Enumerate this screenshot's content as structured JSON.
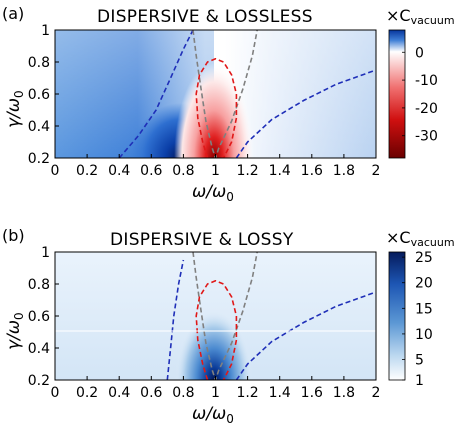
{
  "chart_data": [
    {
      "panel_label": "(a)",
      "type": "heatmap",
      "title": "DISPERSIVE & LOSSLESS",
      "xlabel": "ω/ω",
      "xlabel_sub": "0",
      "ylabel": "γ/ω",
      "ylabel_sub": "0",
      "xlim": [
        0,
        2
      ],
      "ylim": [
        0.2,
        1
      ],
      "xticks": [
        "0",
        "0.2",
        "0.4",
        "0.6",
        "0.8",
        "1",
        "1.2",
        "1.4",
        "1.6",
        "1.8",
        "2"
      ],
      "yticks": [
        "0.2",
        "0.4",
        "0.6",
        "0.8",
        "1"
      ],
      "colorbar": {
        "label": "×C",
        "label_sub": "vacuum",
        "range": [
          -38,
          8
        ],
        "ticks": [
          "0",
          "-10",
          "-20",
          "-30"
        ],
        "colormap": "blue-white-red (diverging)",
        "colors": {
          "high": "#06359c",
          "mid": "#ffffff",
          "low": "#7a0000"
        }
      },
      "contours": [
        {
          "color": "#1f2fb8",
          "style": "dashed",
          "points": [
            [
              0.4,
              0.2
            ],
            [
              0.52,
              0.34
            ],
            [
              0.63,
              0.5
            ],
            [
              0.72,
              0.7
            ],
            [
              0.8,
              0.88
            ],
            [
              0.86,
              1.0
            ]
          ]
        },
        {
          "color": "#1f2fb8",
          "style": "dashed",
          "points": [
            [
              1.13,
              0.2
            ],
            [
              1.2,
              0.3
            ],
            [
              1.35,
              0.44
            ],
            [
              1.55,
              0.56
            ],
            [
              1.75,
              0.66
            ],
            [
              2.0,
              0.75
            ]
          ]
        },
        {
          "color": "#808080",
          "style": "dashed",
          "points": [
            [
              0.86,
              1.0
            ],
            [
              0.88,
              0.84
            ],
            [
              0.91,
              0.63
            ],
            [
              0.94,
              0.43
            ],
            [
              0.98,
              0.26
            ],
            [
              1.0,
              0.2
            ],
            [
              1.02,
              0.26
            ],
            [
              1.1,
              0.43
            ],
            [
              1.17,
              0.63
            ],
            [
              1.23,
              0.84
            ],
            [
              1.26,
              1.0
            ]
          ]
        },
        {
          "color": "#e01818",
          "style": "dashed",
          "points": [
            [
              0.95,
              0.2
            ],
            [
              0.92,
              0.3
            ],
            [
              0.89,
              0.45
            ],
            [
              0.88,
              0.6
            ],
            [
              0.9,
              0.72
            ],
            [
              0.95,
              0.8
            ],
            [
              1.0,
              0.82
            ],
            [
              1.05,
              0.8
            ],
            [
              1.1,
              0.72
            ],
            [
              1.13,
              0.6
            ],
            [
              1.13,
              0.45
            ],
            [
              1.1,
              0.3
            ],
            [
              1.05,
              0.2
            ]
          ]
        }
      ]
    },
    {
      "panel_label": "(b)",
      "type": "heatmap",
      "title": "DISPERSIVE & LOSSY",
      "xlabel": "ω/ω",
      "xlabel_sub": "0",
      "ylabel": "γ/ω",
      "ylabel_sub": "0",
      "xlim": [
        0,
        2
      ],
      "ylim": [
        0.2,
        1
      ],
      "xticks": [
        "0",
        "0.2",
        "0.4",
        "0.6",
        "0.8",
        "1",
        "1.2",
        "1.4",
        "1.6",
        "1.8",
        "2"
      ],
      "yticks": [
        "0.2",
        "0.4",
        "0.6",
        "0.8",
        "1"
      ],
      "colorbar": {
        "label": "×C",
        "label_sub": "vacuum",
        "range": [
          1,
          26
        ],
        "ticks": [
          "25",
          "20",
          "15",
          "10",
          "5",
          "1"
        ],
        "colormap": "white-to-blue (sequential)",
        "colors": {
          "high": "#051b5c",
          "mid": "#4f8ccc",
          "low": "#ffffff"
        }
      },
      "contours": [
        {
          "color": "#1f2fb8",
          "style": "dashed",
          "points": [
            [
              0.7,
              0.2
            ],
            [
              0.72,
              0.4
            ],
            [
              0.74,
              0.6
            ],
            [
              0.77,
              0.8
            ],
            [
              0.8,
              0.95
            ]
          ]
        },
        {
          "color": "#1f2fb8",
          "style": "dashed",
          "points": [
            [
              1.13,
              0.2
            ],
            [
              1.2,
              0.3
            ],
            [
              1.35,
              0.44
            ],
            [
              1.55,
              0.56
            ],
            [
              1.75,
              0.66
            ],
            [
              2.0,
              0.75
            ]
          ]
        },
        {
          "color": "#808080",
          "style": "dashed",
          "points": [
            [
              0.86,
              1.0
            ],
            [
              0.88,
              0.84
            ],
            [
              0.91,
              0.63
            ],
            [
              0.94,
              0.43
            ],
            [
              0.98,
              0.26
            ],
            [
              1.0,
              0.2
            ],
            [
              1.02,
              0.26
            ],
            [
              1.1,
              0.43
            ],
            [
              1.17,
              0.63
            ],
            [
              1.23,
              0.84
            ],
            [
              1.26,
              1.0
            ]
          ]
        },
        {
          "color": "#e01818",
          "style": "dashed",
          "points": [
            [
              0.95,
              0.2
            ],
            [
              0.92,
              0.3
            ],
            [
              0.89,
              0.45
            ],
            [
              0.88,
              0.6
            ],
            [
              0.9,
              0.72
            ],
            [
              0.95,
              0.8
            ],
            [
              1.0,
              0.82
            ],
            [
              1.05,
              0.8
            ],
            [
              1.1,
              0.72
            ],
            [
              1.13,
              0.6
            ],
            [
              1.13,
              0.45
            ],
            [
              1.1,
              0.3
            ],
            [
              1.05,
              0.2
            ]
          ]
        }
      ]
    }
  ]
}
